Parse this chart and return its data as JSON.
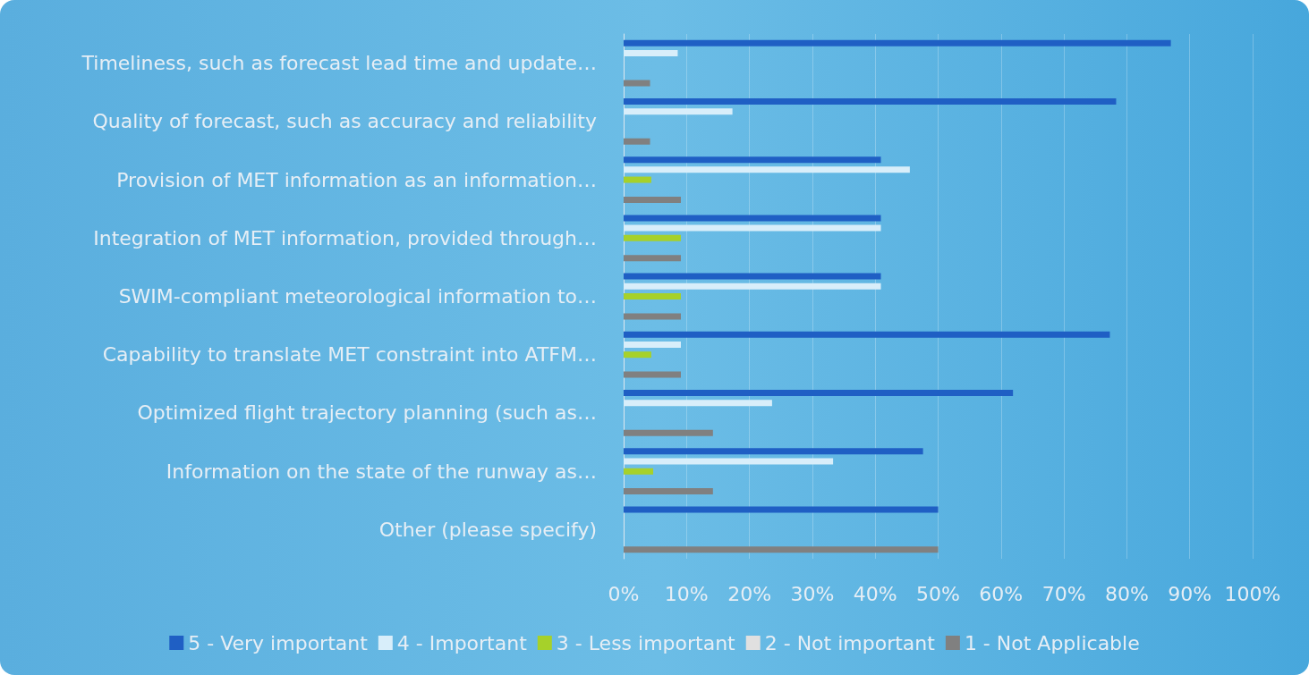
{
  "chart_data": {
    "type": "bar",
    "orientation": "horizontal",
    "categories": [
      "Timeliness, such as forecast lead time and update…",
      "Quality of forecast, such as accuracy and reliability",
      "Provision of MET information as an information…",
      "Integration of MET information, provided through…",
      "SWIM-compliant meteorological information to…",
      "Capability to translate MET constraint into ATFM…",
      "Optimized flight trajectory planning (such as…",
      "Information on the state of the runway as…",
      "Other (please specify)"
    ],
    "series": [
      {
        "name": "5 - Very important",
        "color": "#1f5fc4",
        "values": [
          87,
          78.3,
          40.9,
          40.9,
          40.9,
          77.3,
          61.9,
          47.6,
          50
        ]
      },
      {
        "name": "4 - Important",
        "color": "#d8eefa",
        "values": [
          8.6,
          17.3,
          45.5,
          40.9,
          40.9,
          9.1,
          23.6,
          33.3,
          null
        ]
      },
      {
        "name": "3 - Less important",
        "color": "#a6d12a",
        "values": [
          null,
          null,
          4.4,
          9.1,
          9.1,
          4.4,
          null,
          4.7,
          null
        ]
      },
      {
        "name": "2 - Not important",
        "color": "#e0e0e0",
        "values": [
          null,
          null,
          null,
          null,
          null,
          null,
          null,
          null,
          null
        ]
      },
      {
        "name": "1 - Not Applicable",
        "color": "#808080",
        "values": [
          4.2,
          4.2,
          9.1,
          9.1,
          9.1,
          9.1,
          14.2,
          14.2,
          50
        ]
      }
    ],
    "xlim": [
      0,
      100
    ],
    "xticks": [
      {
        "value": 0,
        "label": "0%"
      },
      {
        "value": 10,
        "label": "10%"
      },
      {
        "value": 20,
        "label": "20%"
      },
      {
        "value": 30,
        "label": "30%"
      },
      {
        "value": 40,
        "label": "40%"
      },
      {
        "value": 50,
        "label": "50%"
      },
      {
        "value": 60,
        "label": "60%"
      },
      {
        "value": 70,
        "label": "70%"
      },
      {
        "value": 80,
        "label": "80%"
      },
      {
        "value": 90,
        "label": "90%"
      },
      {
        "value": 100,
        "label": "100%"
      }
    ],
    "grid": "x",
    "legend": "bottom"
  }
}
